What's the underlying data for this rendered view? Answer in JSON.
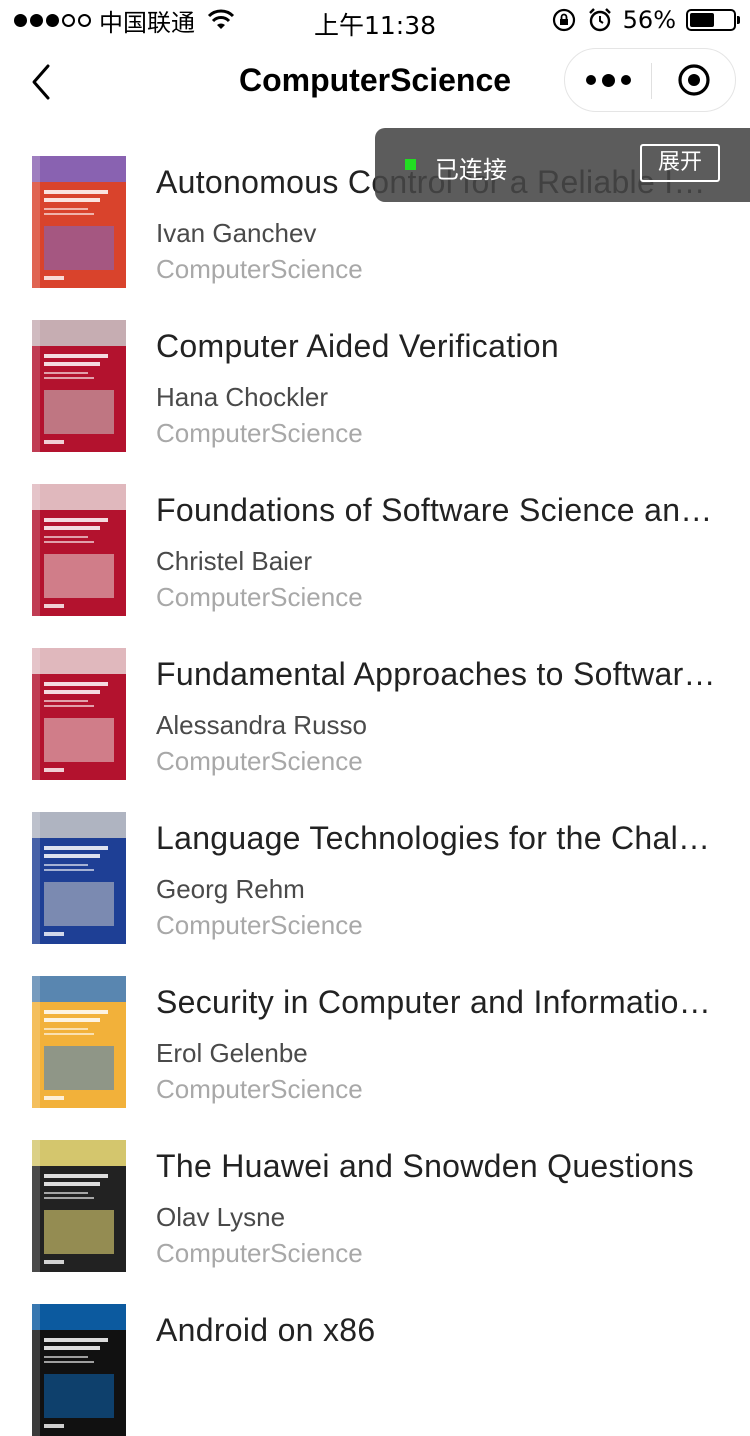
{
  "status_bar": {
    "carrier": "中国联通",
    "time": "上午11:38",
    "battery_percent": "56%",
    "battery_level": 0.56,
    "signal_bars_filled": 3,
    "signal_bars_total": 5,
    "icons": [
      "signal-icon",
      "wifi-icon",
      "orientation-lock-icon",
      "alarm-icon",
      "battery-icon"
    ]
  },
  "nav": {
    "title": "ComputerScience",
    "back_icon": "chevron-left-icon",
    "more_icon": "more-dots-icon",
    "close_icon": "target-close-icon"
  },
  "connection": {
    "status_text": "已连接",
    "expand_label": "展开",
    "dot_color": "#22dd22"
  },
  "books": [
    {
      "title": "Autonomous Control for a Reliable Internet of Services",
      "author": "Ivan Ganchev",
      "category": "ComputerScience",
      "cover_color": "#d9432c",
      "cover_accent": "#7a67c9",
      "cover_text": "Autonomous Control for a Reliable Internet of Services"
    },
    {
      "title": "Computer Aided Verification",
      "author": "Hana Chockler",
      "category": "ComputerScience",
      "cover_color": "#b3122e",
      "cover_accent": "#c9c9c9",
      "cover_text": "Computer Aided Verification"
    },
    {
      "title": "Foundations of Software Science and Computation Structures",
      "author": "Christel Baier",
      "category": "ComputerScience",
      "cover_color": "#b3122e",
      "cover_accent": "#e8d6d6",
      "cover_text": "Foundations of Software Science and Computation Structures"
    },
    {
      "title": "Fundamental Approaches to Software Engineering",
      "author": "Alessandra Russo",
      "category": "ComputerScience",
      "cover_color": "#b3122e",
      "cover_accent": "#e8d6d6",
      "cover_text": "Fundamental Approaches to Software Engineering"
    },
    {
      "title": "Language Technologies for the Challenges of the Digital Age",
      "author": "Georg Rehm",
      "category": "ComputerScience",
      "cover_color": "#1e3f95",
      "cover_accent": "#c9c9c9",
      "cover_text": "Language Technologies for the Challenges of the Digital Age"
    },
    {
      "title": "Security in Computer and Information Sciences",
      "author": "Erol Gelenbe",
      "category": "ComputerScience",
      "cover_color": "#f2b13a",
      "cover_accent": "#3e7fc6",
      "cover_text": "Security in Computer and Information Sciences"
    },
    {
      "title": "The Huawei and Snowden Questions",
      "author": "Olav Lysne",
      "category": "ComputerScience",
      "cover_color": "#222222",
      "cover_accent": "#f3e37a",
      "cover_text": "The Huawei and Snowden Questions"
    },
    {
      "title": "Android on x86",
      "author": "",
      "category": "",
      "cover_color": "#111111",
      "cover_accent": "#0c67b8",
      "cover_text": ""
    }
  ]
}
